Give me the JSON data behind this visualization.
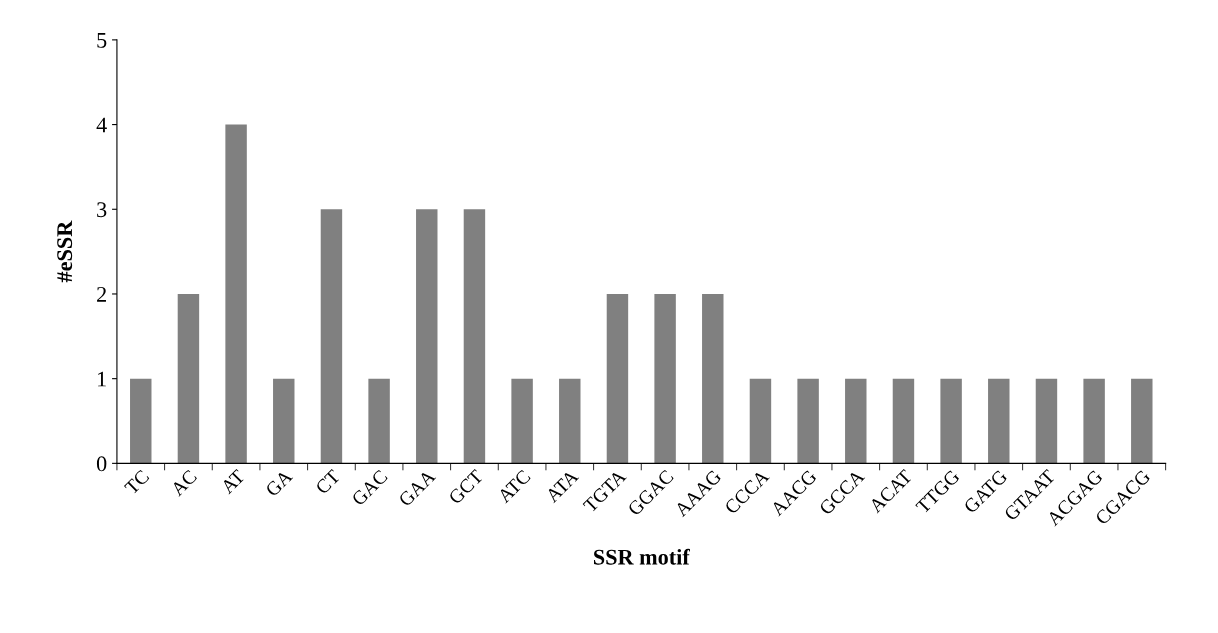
{
  "chart_data": {
    "type": "bar",
    "xlabel": "SSR motif",
    "ylabel": "#eSSR",
    "categories": [
      "TC",
      "AC",
      "AT",
      "GA",
      "CT",
      "GAC",
      "GAA",
      "GCT",
      "ATC",
      "ATA",
      "TGTA",
      "GGAC",
      "AAAG",
      "CCCA",
      "AACG",
      "GCCA",
      "ACAT",
      "TTGG",
      "GATG",
      "GTAAT",
      "ACGAG",
      "CGACG"
    ],
    "values": [
      1,
      2,
      4,
      1,
      3,
      1,
      3,
      3,
      1,
      1,
      2,
      2,
      2,
      1,
      1,
      1,
      1,
      1,
      1,
      1,
      1,
      1
    ],
    "color": "#808080",
    "ylim": [
      0,
      5
    ],
    "yticks": [
      0,
      1,
      2,
      3,
      4,
      5
    ],
    "grid": false,
    "legend": false
  }
}
